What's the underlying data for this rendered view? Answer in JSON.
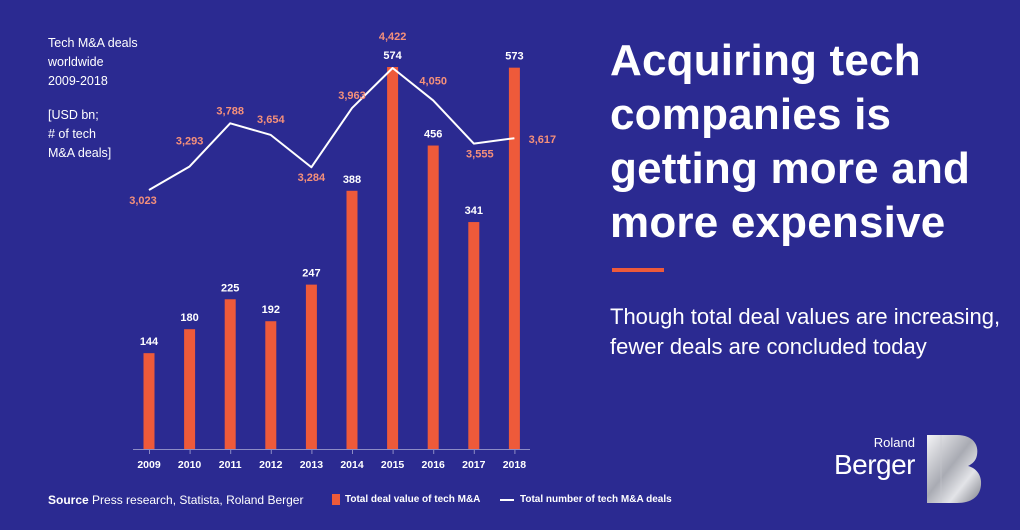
{
  "title_lines": [
    "Tech M&A deals",
    "worldwide",
    "2009-2018"
  ],
  "units_lines": [
    "[USD bn;",
    "# of tech",
    "M&A deals]"
  ],
  "headline": "Acquiring tech companies is getting more and more expensive",
  "subheadline": "Though total deal values are increasing, fewer deals are concluded today",
  "source_label": "Source",
  "source_text": "Press research, Statista, Roland Berger",
  "logo": {
    "line1": "Roland",
    "line2": "Berger"
  },
  "colors": {
    "background": "#2b2a91",
    "bar": "#ee5a3a",
    "line": "#ffffff",
    "line_label": "#f5907a"
  },
  "chart_data": {
    "type": "bar",
    "categories": [
      "2009",
      "2010",
      "2011",
      "2012",
      "2013",
      "2014",
      "2015",
      "2016",
      "2017",
      "2018"
    ],
    "series": [
      {
        "name": "Total deal value of tech M&A",
        "type": "bar",
        "values": [
          144,
          180,
          225,
          192,
          247,
          388,
          574,
          456,
          341,
          573
        ],
        "labels": [
          "144",
          "180",
          "225",
          "192",
          "247",
          "388",
          "574",
          "456",
          "341",
          "573"
        ]
      },
      {
        "name": "Total number of tech M&A deals",
        "type": "line",
        "values": [
          3023,
          3293,
          3788,
          3654,
          3284,
          3963,
          4422,
          4050,
          3555,
          3617
        ],
        "labels": [
          "3,023",
          "3,293",
          "3,788",
          "3,654",
          "3,284",
          "3,963",
          "4,422",
          "4,050",
          "3,555",
          "3,617"
        ]
      }
    ],
    "legend_position": "bottom",
    "grid": false
  }
}
